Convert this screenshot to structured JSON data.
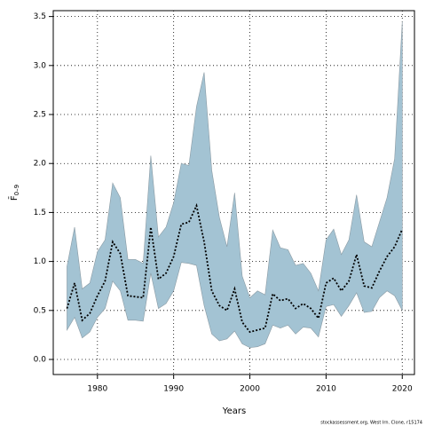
{
  "chart_data": {
    "type": "line",
    "xlabel": "Years",
    "ylabel": "F̄",
    "ylabel_subscript": "0–9",
    "footnote": "stockassessment.org, West Irn. Clone, r15174",
    "x": [
      1976,
      1977,
      1978,
      1979,
      1980,
      1981,
      1982,
      1983,
      1984,
      1985,
      1986,
      1987,
      1988,
      1989,
      1990,
      1991,
      1992,
      1993,
      1994,
      1995,
      1996,
      1997,
      1998,
      1999,
      2000,
      2001,
      2002,
      2003,
      2004,
      2005,
      2006,
      2007,
      2008,
      2009,
      2010,
      2011,
      2012,
      2013,
      2014,
      2015,
      2016,
      2017,
      2018,
      2019,
      2020
    ],
    "values": [
      0.52,
      0.78,
      0.4,
      0.47,
      0.65,
      0.8,
      1.2,
      1.08,
      0.65,
      0.64,
      0.63,
      1.35,
      0.82,
      0.88,
      1.05,
      1.38,
      1.4,
      1.57,
      1.2,
      0.7,
      0.55,
      0.5,
      0.72,
      0.38,
      0.28,
      0.3,
      0.32,
      0.67,
      0.6,
      0.62,
      0.52,
      0.57,
      0.52,
      0.42,
      0.78,
      0.83,
      0.7,
      0.8,
      1.07,
      0.75,
      0.73,
      0.9,
      1.05,
      1.15,
      1.33
    ],
    "upper": [
      0.95,
      1.35,
      0.72,
      0.78,
      1.1,
      1.22,
      1.8,
      1.65,
      1.02,
      1.02,
      0.98,
      2.08,
      1.25,
      1.35,
      1.6,
      2.0,
      1.98,
      2.58,
      2.93,
      1.93,
      1.45,
      1.15,
      1.7,
      0.85,
      0.63,
      0.7,
      0.66,
      1.32,
      1.14,
      1.12,
      0.96,
      0.98,
      0.88,
      0.7,
      1.22,
      1.33,
      1.07,
      1.22,
      1.68,
      1.2,
      1.15,
      1.4,
      1.65,
      2.05,
      3.45
    ],
    "lower": [
      0.3,
      0.43,
      0.22,
      0.28,
      0.43,
      0.52,
      0.8,
      0.7,
      0.4,
      0.4,
      0.39,
      0.88,
      0.52,
      0.57,
      0.7,
      0.99,
      0.98,
      0.96,
      0.55,
      0.26,
      0.19,
      0.21,
      0.29,
      0.16,
      0.12,
      0.13,
      0.16,
      0.35,
      0.32,
      0.35,
      0.26,
      0.33,
      0.32,
      0.23,
      0.54,
      0.56,
      0.44,
      0.55,
      0.68,
      0.48,
      0.49,
      0.63,
      0.7,
      0.65,
      0.5
    ],
    "color": "#000000",
    "band_color": "#a3c3d3",
    "xlim": [
      1974.2,
      2021.6
    ],
    "ylim": [
      -0.154,
      3.56
    ],
    "xticks": [
      1980,
      1990,
      2000,
      2010,
      2020
    ],
    "yticks": [
      {
        "value": 0,
        "label": "0.0"
      },
      {
        "value": 0.5,
        "label": "0.5"
      },
      {
        "value": 1,
        "label": "1.0"
      },
      {
        "value": 1.5,
        "label": "1.5"
      },
      {
        "value": 2,
        "label": "2.0"
      },
      {
        "value": 2.5,
        "label": "2.5"
      },
      {
        "value": 3,
        "label": "3.0"
      },
      {
        "value": 3.5,
        "label": "3.5"
      }
    ],
    "grid": true
  }
}
